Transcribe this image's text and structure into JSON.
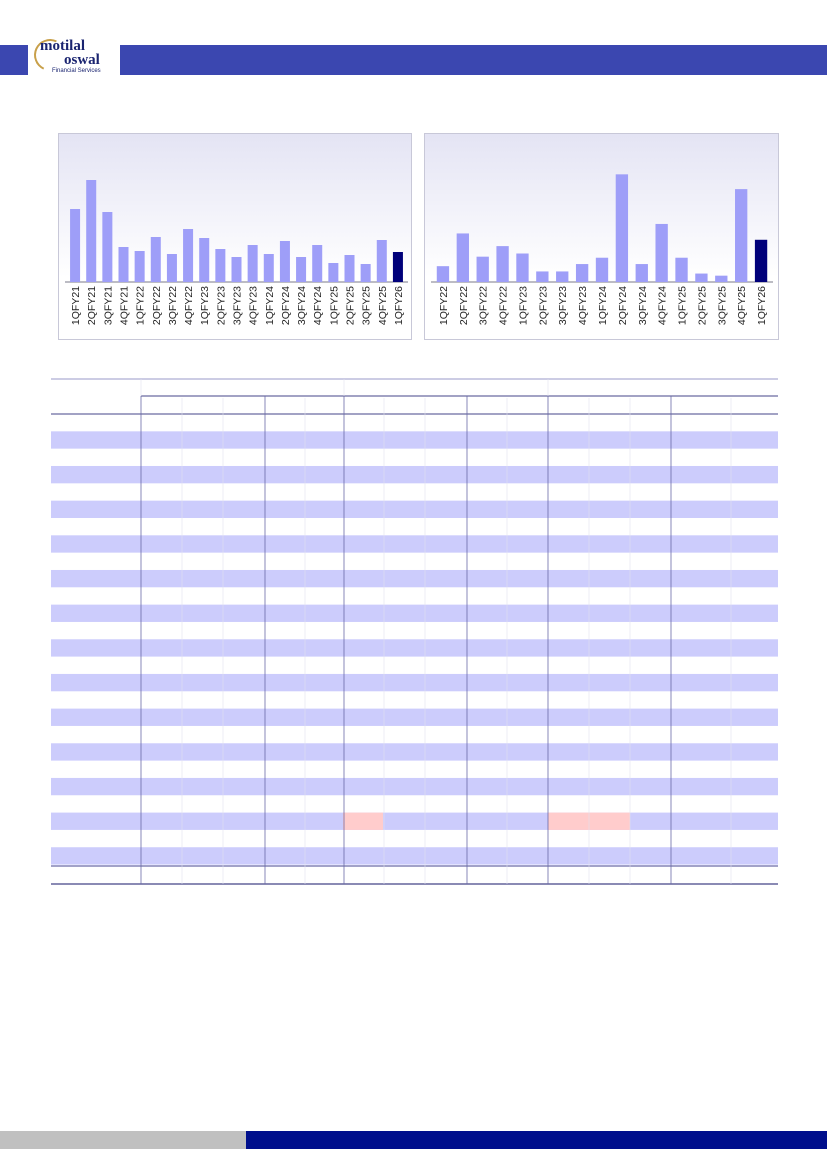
{
  "header": {
    "brand_line1": "motilal",
    "brand_line2": "oswal",
    "brand_sub": "Financial Services",
    "bar_color": "#3b47b0"
  },
  "colors": {
    "bar": "#9e9ef8",
    "bar_highlight": "#00007a",
    "row_band": "#ccccfc",
    "cell_highlight": "#ffcccc",
    "footer_blue": "#000f8c",
    "footer_grey": "#c0c0c0"
  },
  "chart_data": [
    {
      "type": "bar",
      "categories": [
        "1QFY21",
        "2QFY21",
        "3QFY21",
        "4QFY21",
        "1QFY22",
        "2QFY22",
        "3QFY22",
        "4QFY22",
        "1QFY23",
        "2QFY23",
        "3QFY23",
        "4QFY23",
        "1QFY24",
        "2QFY24",
        "3QFY24",
        "4QFY24",
        "1QFY25",
        "2QFY25",
        "3QFY25",
        "4QFY25",
        "1QFY26"
      ],
      "values": [
        73,
        102,
        70,
        35,
        31,
        45,
        28,
        53,
        44,
        33,
        25,
        37,
        28,
        41,
        25,
        37,
        19,
        27,
        18,
        42,
        30
      ],
      "highlight_last": true,
      "title": "",
      "xlabel": "",
      "ylabel": ""
    },
    {
      "type": "bar",
      "categories": [
        "1QFY22",
        "2QFY22",
        "3QFY22",
        "4QFY22",
        "1QFY23",
        "2QFY23",
        "3QFY23",
        "4QFY23",
        "1QFY24",
        "2QFY24",
        "3QFY24",
        "4QFY24",
        "1QFY25",
        "2QFY25",
        "3QFY25",
        "4QFY25",
        "1QFY26"
      ],
      "values": [
        15,
        46,
        24,
        34,
        27,
        10,
        10,
        17,
        23,
        102,
        17,
        55,
        23,
        8,
        6,
        88,
        40
      ],
      "highlight_last": true,
      "title": "",
      "xlabel": "",
      "ylabel": ""
    }
  ]
}
